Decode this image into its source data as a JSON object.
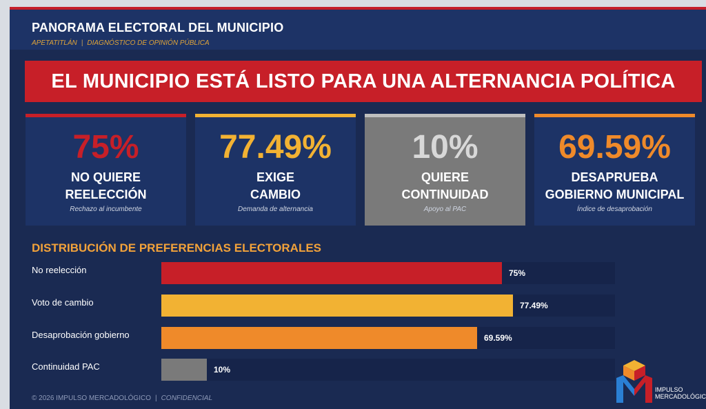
{
  "header": {
    "title": "PANORAMA ELECTORAL DEL MUNICIPIO",
    "subtitle_left": "APETATITLÁN",
    "subtitle_sep": "|",
    "subtitle_right": "DIAGNÓSTICO DE OPINIÓN PÚBLICA"
  },
  "banner": {
    "text": "EL MUNICIPIO ESTÁ LISTO PARA UNA ALTERNANCIA POLÍTICA"
  },
  "cards": [
    {
      "value": "75%",
      "line1": "NO QUIERE",
      "line2": "REELECCIÓN",
      "caption": "Rechazo al incumbente",
      "accent": "#c71f28",
      "bg": "#1d3366"
    },
    {
      "value": "77.49%",
      "line1": "EXIGE",
      "line2": "CAMBIO",
      "caption": "Demanda de alternancia",
      "accent": "#f2b233",
      "bg": "#1d3366"
    },
    {
      "value": "10%",
      "line1": "QUIERE",
      "line2": "CONTINUIDAD",
      "caption": "Apoyo al PAC",
      "accent": "#bfbfbf",
      "bg": "#7a7a7a"
    },
    {
      "value": "69.59%",
      "line1": "DESAPRUEBA",
      "line2": "GOBIERNO MUNICIPAL",
      "caption": "Índice de desaprobación",
      "accent": "#ef8a2a",
      "bg": "#1d3366"
    }
  ],
  "chart_data": {
    "type": "bar",
    "orientation": "horizontal",
    "title": "DISTRIBUCIÓN DE PREFERENCIAS ELECTORALES",
    "categories": [
      "No reelección",
      "Voto de cambio",
      "Desaprobación gobierno",
      "Continuidad PAC"
    ],
    "values": [
      75,
      77.49,
      69.59,
      10
    ],
    "value_labels": [
      "75%",
      "77.49%",
      "69.59%",
      "10%"
    ],
    "colors": [
      "#c71f28",
      "#f2b233",
      "#ef8a2a",
      "#7a7a7a"
    ],
    "xlim": [
      0,
      100
    ],
    "grid": false
  },
  "footer": {
    "copyright": "© 2026 IMPULSO MERCADOLÓGICO",
    "sep": "|",
    "confidential": "CONFIDENCIAL"
  },
  "logo": {
    "line1": "IMPULSO",
    "line2": "MERCADOLÓGICO"
  }
}
